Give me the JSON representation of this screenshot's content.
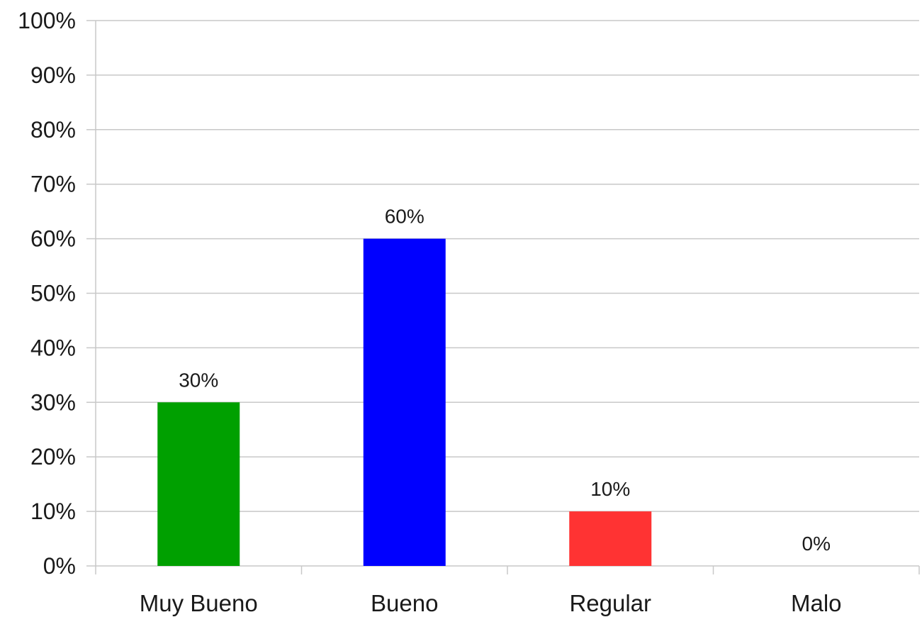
{
  "chart_data": {
    "type": "bar",
    "title": "",
    "xlabel": "",
    "ylabel": "",
    "categories": [
      "Muy Bueno",
      "Bueno",
      "Regular",
      "Malo"
    ],
    "values": [
      30,
      60,
      10,
      0
    ],
    "value_labels": [
      "30%",
      "60%",
      "10%",
      "0%"
    ],
    "ylim": [
      0,
      100
    ],
    "yticks": [
      0,
      10,
      20,
      30,
      40,
      50,
      60,
      70,
      80,
      90,
      100
    ],
    "ytick_labels": [
      "0%",
      "10%",
      "20%",
      "30%",
      "40%",
      "50%",
      "60%",
      "70%",
      "80%",
      "90%",
      "100%"
    ],
    "bar_colors": [
      "#00a000",
      "#0000ff",
      "#ff3333",
      "#ff3333"
    ],
    "grid": true,
    "legend": "none"
  }
}
